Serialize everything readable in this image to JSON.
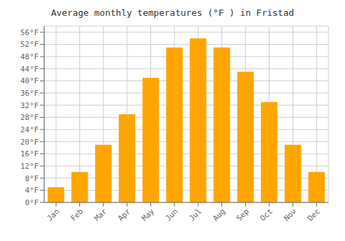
{
  "chart_data": {
    "type": "bar",
    "title": "Average monthly temperatures (°F ) in Fristad",
    "categories": [
      "Jan",
      "Feb",
      "Mar",
      "Apr",
      "May",
      "Jun",
      "Jul",
      "Aug",
      "Sep",
      "Oct",
      "Nov",
      "Dec"
    ],
    "values": [
      5,
      10,
      19,
      29,
      41,
      51,
      54,
      51,
      43,
      33,
      19,
      10
    ],
    "color": "#FFA500",
    "ylim": [
      0,
      58
    ],
    "yticks": [
      {
        "value": 0,
        "label": "0°F"
      },
      {
        "value": 4,
        "label": "4°F"
      },
      {
        "value": 8,
        "label": "8°F"
      },
      {
        "value": 12,
        "label": "12°F"
      },
      {
        "value": 16,
        "label": "16°F"
      },
      {
        "value": 20,
        "label": "20°F"
      },
      {
        "value": 24,
        "label": "24°F"
      },
      {
        "value": 28,
        "label": "28°F"
      },
      {
        "value": 32,
        "label": "32°F"
      },
      {
        "value": 36,
        "label": "36°F"
      },
      {
        "value": 40,
        "label": "40°F"
      },
      {
        "value": 44,
        "label": "44°F"
      },
      {
        "value": 48,
        "label": "48°F"
      },
      {
        "value": 52,
        "label": "52°F"
      },
      {
        "value": 56,
        "label": "56°F"
      }
    ],
    "grid": true
  }
}
